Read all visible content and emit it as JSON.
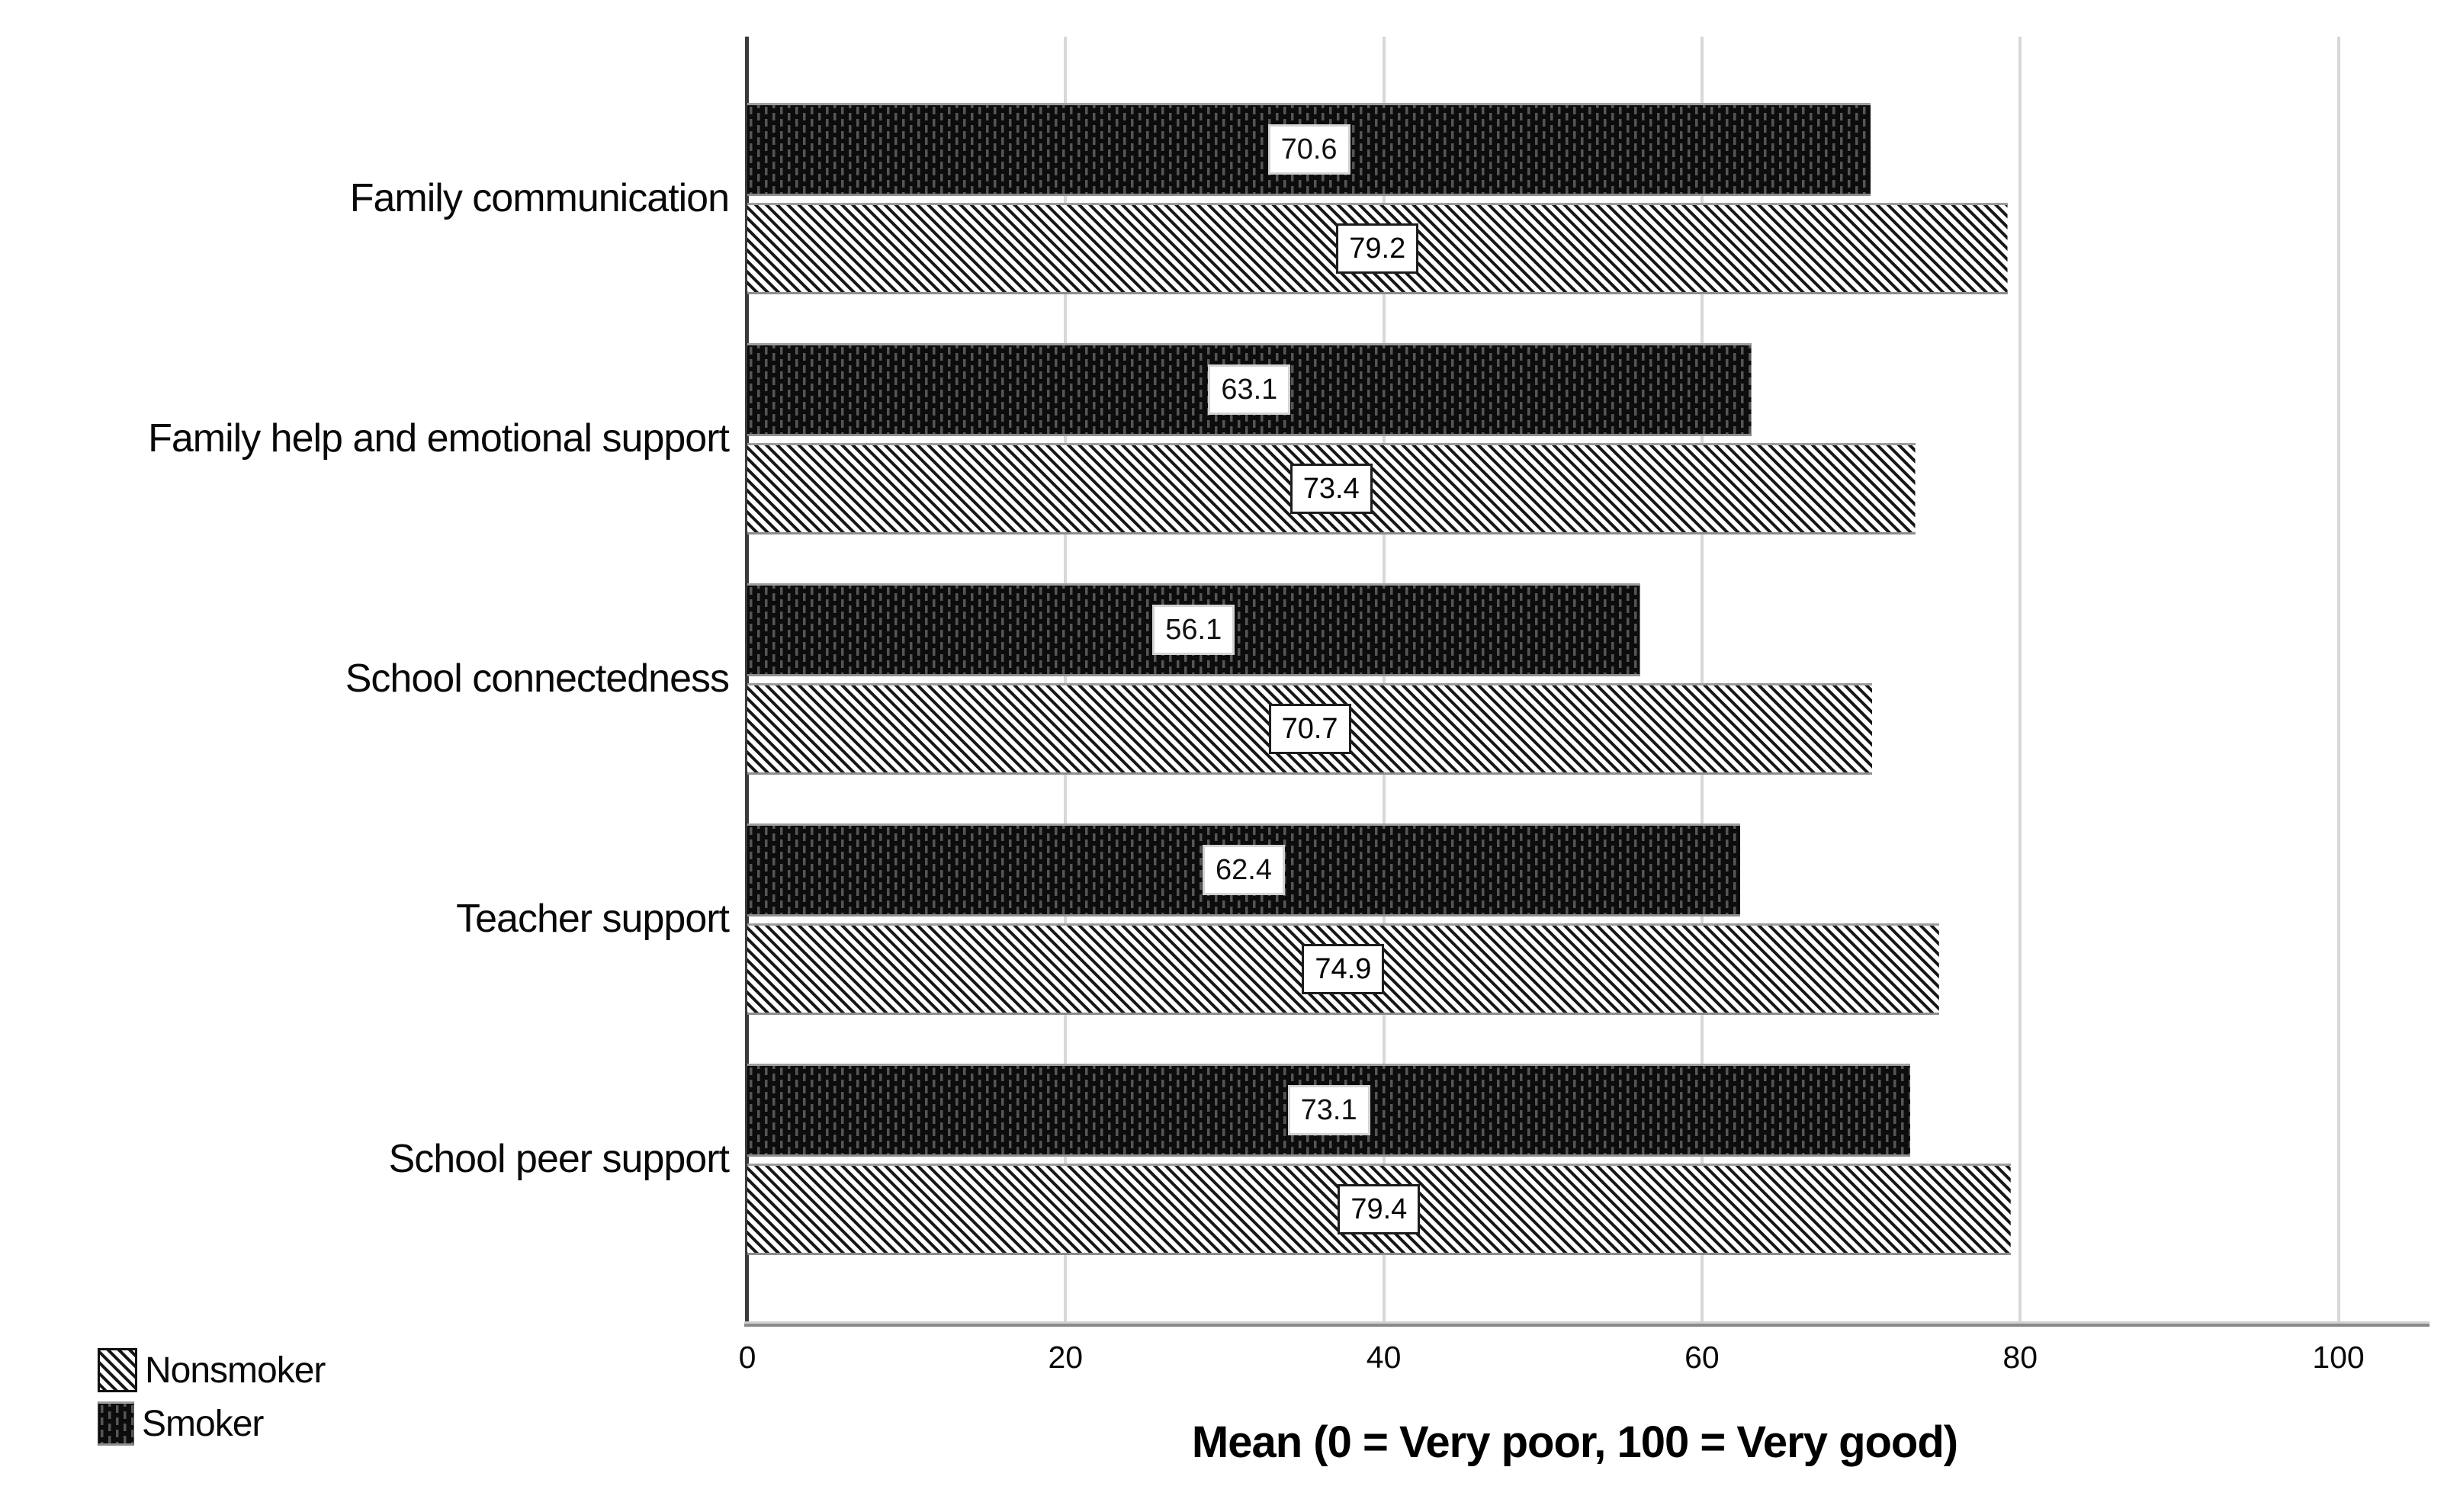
{
  "chart_data": {
    "type": "bar",
    "orientation": "horizontal",
    "categories": [
      "Family communication",
      "Family help and emotional support",
      "School connectedness",
      "Teacher support",
      "School peer support"
    ],
    "series": [
      {
        "name": "Smoker",
        "pattern": "dotted-black",
        "values": [
          70.6,
          63.1,
          56.1,
          62.4,
          73.1
        ]
      },
      {
        "name": "Nonsmoker",
        "pattern": "diagonal-hatch",
        "values": [
          79.2,
          73.4,
          70.7,
          74.9,
          79.4
        ]
      }
    ],
    "row_order_note": "within each category group the Smoker bar is drawn on top, Nonsmoker below",
    "value_labels_shown": true,
    "xlabel": "Mean (0 = Very poor, 100 = Very good)",
    "x_ticks": [
      0,
      20,
      40,
      60,
      80,
      100
    ],
    "xlim": [
      0,
      104
    ],
    "grid": "vertical-light-gray",
    "legend_position": "bottom-left"
  },
  "legend": {
    "items": [
      {
        "label": "Nonsmoker",
        "swatch": "diagonal-hatch"
      },
      {
        "label": "Smoker",
        "swatch": "dotted-black"
      }
    ]
  },
  "colors": {
    "background": "#ffffff",
    "smoker_fill": "#0c0c0c",
    "smoker_texture": "#565656",
    "hatch_stripe": "#161616",
    "hatch_background": "#ffffff",
    "gridline": "#d8d8d8",
    "y_axis_line": "#3a3a3a",
    "x_baseline": "#8a8a8a",
    "value_label_box": "#ffffff"
  }
}
